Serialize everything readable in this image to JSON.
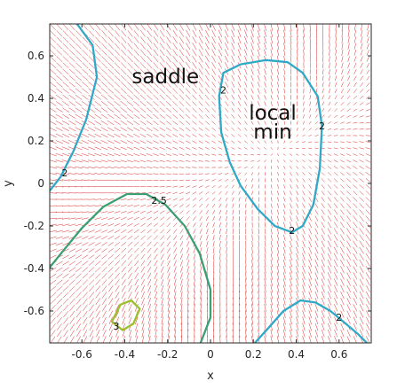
{
  "chart_data": {
    "type": "contour",
    "xlabel": "x",
    "ylabel": "y",
    "xlim": [
      -0.75,
      0.75
    ],
    "ylim": [
      -0.75,
      0.75
    ],
    "xticks": [
      "-0.6",
      "-0.4",
      "-0.2",
      "0",
      "0.2",
      "0.4",
      "0.6"
    ],
    "yticks": [
      "-0.6",
      "-0.4",
      "-0.2",
      "0",
      "0.2",
      "0.4",
      "0.6"
    ],
    "annotations": [
      {
        "text": "saddle",
        "x": -0.21,
        "y": 0.47
      },
      {
        "text": "local",
        "x": 0.29,
        "y": 0.3
      },
      {
        "text": "min",
        "x": 0.29,
        "y": 0.21
      }
    ],
    "contour_labels": [
      {
        "text": "2",
        "x": 0.06,
        "y": 0.44
      },
      {
        "text": "2",
        "x": 0.52,
        "y": 0.27
      },
      {
        "text": "2",
        "x": 0.38,
        "y": -0.22
      },
      {
        "text": "2",
        "x": -0.68,
        "y": 0.05
      },
      {
        "text": "2",
        "x": 0.6,
        "y": -0.63
      },
      {
        "text": "2.5",
        "x": -0.24,
        "y": -0.08
      },
      {
        "text": "3",
        "x": -0.44,
        "y": -0.67
      }
    ],
    "contours": [
      {
        "level": 2,
        "color": "#30a9c6",
        "points": [
          [
            -0.63,
            0.76
          ],
          [
            -0.55,
            0.65
          ],
          [
            -0.53,
            0.5
          ],
          [
            -0.58,
            0.3
          ],
          [
            -0.64,
            0.15
          ],
          [
            -0.7,
            0.03
          ],
          [
            -0.77,
            -0.06
          ]
        ]
      },
      {
        "level": 2,
        "color": "#30a9c6",
        "points": [
          [
            0.04,
            0.41
          ],
          [
            0.06,
            0.52
          ],
          [
            0.14,
            0.56
          ],
          [
            0.26,
            0.58
          ],
          [
            0.36,
            0.57
          ],
          [
            0.43,
            0.52
          ],
          [
            0.5,
            0.41
          ],
          [
            0.52,
            0.27
          ],
          [
            0.51,
            0.07
          ],
          [
            0.48,
            -0.1
          ],
          [
            0.43,
            -0.2
          ],
          [
            0.38,
            -0.23
          ],
          [
            0.3,
            -0.2
          ],
          [
            0.22,
            -0.12
          ],
          [
            0.14,
            -0.01
          ],
          [
            0.09,
            0.1
          ],
          [
            0.05,
            0.24
          ],
          [
            0.04,
            0.41
          ]
        ]
      },
      {
        "level": 2,
        "color": "#30a9c6",
        "points": [
          [
            0.18,
            -0.78
          ],
          [
            0.27,
            -0.68
          ],
          [
            0.34,
            -0.6
          ],
          [
            0.42,
            -0.55
          ],
          [
            0.49,
            -0.56
          ],
          [
            0.56,
            -0.6
          ],
          [
            0.62,
            -0.65
          ],
          [
            0.69,
            -0.71
          ],
          [
            0.77,
            -0.79
          ]
        ]
      },
      {
        "level": 2.5,
        "color": "#3b9f73",
        "points": [
          [
            -0.77,
            -0.42
          ],
          [
            -0.69,
            -0.32
          ],
          [
            -0.6,
            -0.21
          ],
          [
            -0.5,
            -0.11
          ],
          [
            -0.39,
            -0.05
          ],
          [
            -0.3,
            -0.05
          ],
          [
            -0.21,
            -0.1
          ],
          [
            -0.12,
            -0.2
          ],
          [
            -0.05,
            -0.33
          ],
          [
            0.0,
            -0.5
          ],
          [
            0.0,
            -0.63
          ],
          [
            -0.05,
            -0.76
          ],
          [
            -0.09,
            -0.8
          ]
        ]
      },
      {
        "level": 3,
        "color": "#9cbf2c",
        "points": [
          [
            -0.46,
            -0.65
          ],
          [
            -0.42,
            -0.57
          ],
          [
            -0.37,
            -0.55
          ],
          [
            -0.33,
            -0.59
          ],
          [
            -0.36,
            -0.66
          ],
          [
            -0.41,
            -0.69
          ],
          [
            -0.46,
            -0.65
          ]
        ]
      }
    ],
    "quiver": {
      "color": "#dc2a2a",
      "grid_step": 0.03
    },
    "grid": false,
    "background": "#ffffff"
  }
}
